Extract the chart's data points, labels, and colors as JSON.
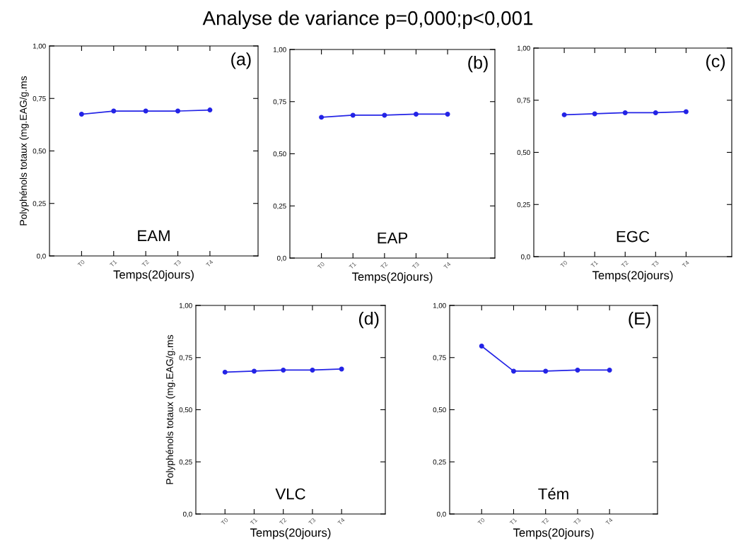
{
  "chart_data": [
    {
      "type": "other",
      "title": "Analyse de variance p=0,000;p<0,001"
    },
    {
      "type": "line",
      "categories": [
        "T0",
        "T1",
        "T2",
        "T3",
        "T4"
      ],
      "xlabel": "Temps(20jours)",
      "ylabel": "Polyphénols totaux (mg.EAG/g.ms",
      "annotations": [
        "(a)",
        "EAM"
      ],
      "series": [
        {
          "color": "#2323e6",
          "values": [
            0.675,
            0.69,
            0.69,
            0.69,
            0.695
          ]
        }
      ],
      "ylim": [
        0,
        1
      ],
      "yticks": [
        {
          "value": 0,
          "label": "0,0"
        },
        {
          "value": 0.25,
          "label": "0,25"
        },
        {
          "value": 0.5,
          "label": "0,50"
        },
        {
          "value": 0.75,
          "label": "0,75"
        },
        {
          "value": 1,
          "label": "1,00"
        }
      ],
      "marker": "circle",
      "line_style": "solid"
    },
    {
      "type": "line",
      "categories": [
        "T0",
        "T1",
        "T2",
        "T3",
        "T4"
      ],
      "xlabel": "Temps(20jours)",
      "annotations": [
        "(b)",
        "EAP"
      ],
      "series": [
        {
          "color": "#2323e6",
          "values": [
            0.675,
            0.685,
            0.685,
            0.69,
            0.69
          ]
        }
      ],
      "ylim": [
        0,
        1
      ],
      "yticks": [
        {
          "value": 0,
          "label": "0,0"
        },
        {
          "value": 0.25,
          "label": "0,25"
        },
        {
          "value": 0.5,
          "label": "0,50"
        },
        {
          "value": 0.75,
          "label": "0,75"
        },
        {
          "value": 1,
          "label": "1,00"
        }
      ],
      "marker": "circle",
      "line_style": "solid"
    },
    {
      "type": "line",
      "categories": [
        "T0",
        "T1",
        "T2",
        "T3",
        "T4"
      ],
      "xlabel": "Temps(20jours)",
      "annotations": [
        "(c)",
        "EGC"
      ],
      "series": [
        {
          "color": "#2323e6",
          "values": [
            0.68,
            0.685,
            0.69,
            0.69,
            0.695
          ]
        }
      ],
      "ylim": [
        0,
        1
      ],
      "yticks": [
        {
          "value": 0,
          "label": "0,0"
        },
        {
          "value": 0.25,
          "label": "0,25"
        },
        {
          "value": 0.5,
          "label": "0,50"
        },
        {
          "value": 0.75,
          "label": "0,75"
        },
        {
          "value": 1,
          "label": "1,00"
        }
      ],
      "marker": "circle",
      "line_style": "solid"
    },
    {
      "type": "line",
      "categories": [
        "T0",
        "T1",
        "T2",
        "T3",
        "T4"
      ],
      "xlabel": "Temps(20jours)",
      "ylabel": "Polyphénols totaux (mg.EAG/g.ms",
      "annotations": [
        "(d)",
        "VLC"
      ],
      "series": [
        {
          "color": "#2323e6",
          "values": [
            0.68,
            0.685,
            0.69,
            0.69,
            0.695
          ]
        }
      ],
      "ylim": [
        0,
        1
      ],
      "yticks": [
        {
          "value": 0,
          "label": "0,0"
        },
        {
          "value": 0.25,
          "label": "0,25"
        },
        {
          "value": 0.5,
          "label": "0,50"
        },
        {
          "value": 0.75,
          "label": "0,75"
        },
        {
          "value": 1,
          "label": "1,00"
        }
      ],
      "marker": "circle",
      "line_style": "solid"
    },
    {
      "type": "line",
      "categories": [
        "T0",
        "T1",
        "T2",
        "T3",
        "T4"
      ],
      "xlabel": "Temps(20jours)",
      "annotations": [
        "(E)",
        "Tém"
      ],
      "series": [
        {
          "color": "#2323e6",
          "values": [
            0.805,
            0.685,
            0.685,
            0.69,
            0.69
          ]
        }
      ],
      "ylim": [
        0,
        1
      ],
      "yticks": [
        {
          "value": 0,
          "label": "0,0"
        },
        {
          "value": 0.25,
          "label": "0,25"
        },
        {
          "value": 0.5,
          "label": "0,50"
        },
        {
          "value": 0.75,
          "label": "0,75"
        },
        {
          "value": 1,
          "label": "1,00"
        }
      ],
      "marker": "circle",
      "line_style": "solid"
    }
  ]
}
